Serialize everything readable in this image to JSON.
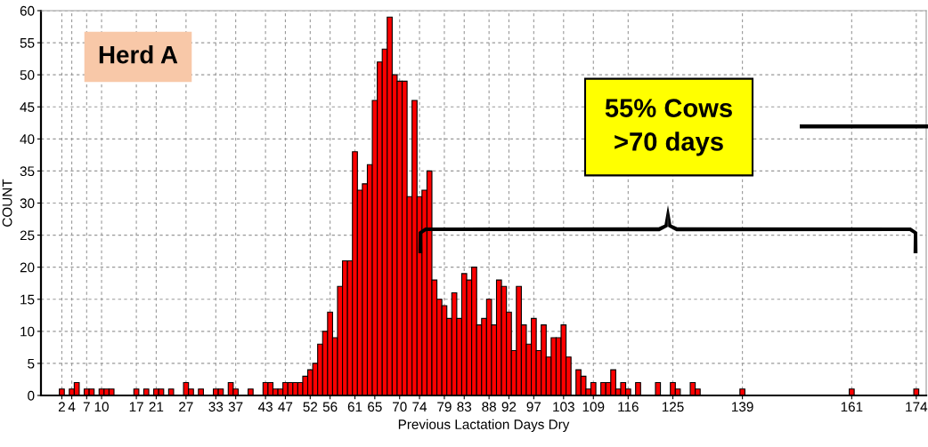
{
  "chart_data": {
    "type": "histogram",
    "xlabel": "Previous Lactation Days Dry",
    "ylabel": "COUNT",
    "annotations": [
      "Herd A",
      "55% Cows\n>70 days"
    ],
    "bins": [
      0.5,
      1.5,
      2.5,
      3.5,
      4.5,
      5.5,
      6.5,
      7.5,
      8.5,
      9.5,
      10.5,
      11.5,
      12.5,
      13.5,
      14.5,
      15.5,
      16.5,
      17.5,
      18.5,
      19.5,
      20.5,
      21.5,
      22.5,
      23.5,
      24.5,
      25.5,
      26.5,
      27.5,
      28.5,
      29.5,
      30.5,
      31.5,
      32.5,
      33.5,
      34.5,
      35.5,
      36.5,
      37.5,
      38.5,
      39.5,
      40.5,
      41.5,
      42.5,
      43.5,
      44.5,
      45.5,
      46.5,
      47.5,
      48.5,
      49.5,
      50.5,
      51.5,
      52.5,
      53.5,
      54.5,
      55.5,
      56.5,
      57.5,
      58.5,
      59.5,
      60.5,
      61.5,
      62.5,
      63.5,
      64.5,
      65.5,
      66.5,
      67.5,
      68.5,
      69.5,
      70.5,
      71.5,
      72.5,
      73.5,
      74.5,
      75.5,
      76.5,
      77.5,
      78.5,
      79.5,
      80.5,
      81.5,
      82.5,
      83.5,
      84.5,
      85.5,
      86.5,
      87.5,
      88.5,
      89.5,
      90.5,
      91.5,
      92.5,
      93.5,
      94.5,
      95.5,
      96.5,
      97.5,
      98.5,
      99.5,
      100.5,
      101.5,
      102.5,
      103.5,
      104.5,
      105.5,
      106.5,
      107.5,
      108.5,
      109.5,
      110.5,
      111.5,
      112.5,
      113.5,
      114.5,
      115.5,
      116.5,
      117.5,
      118.5,
      119.5,
      120.5,
      121.5,
      122.5,
      123.5,
      124.5,
      125.5,
      126.5,
      127.5,
      128.5,
      129.5,
      130.5,
      131.5,
      132.5,
      133.5,
      134.5,
      135.5,
      136.5,
      137.5,
      138.5,
      139.5,
      140.5,
      141.5,
      142.5,
      143.5,
      144.5,
      145.5,
      146.5,
      147.5,
      148.5,
      149.5,
      150.5,
      151.5,
      152.5,
      153.5,
      154.5,
      155.5,
      156.5,
      157.5,
      158.5,
      159.5,
      160.5,
      161.5,
      162.5,
      163.5,
      164.5,
      165.5,
      166.5,
      167.5,
      168.5,
      169.5,
      170.5,
      171.5,
      172.5,
      173.5,
      174.5
    ],
    "values": [
      0,
      1,
      0,
      1,
      2,
      0,
      1,
      1,
      0,
      1,
      1,
      1,
      0,
      0,
      0,
      0,
      1,
      0,
      1,
      0,
      1,
      1,
      0,
      1,
      0,
      0,
      2,
      1,
      0,
      1,
      0,
      0,
      1,
      1,
      0,
      2,
      1,
      0,
      0,
      1,
      0,
      0,
      2,
      2,
      1,
      1,
      2,
      2,
      2,
      2,
      3,
      4,
      5,
      8,
      10,
      13,
      9,
      17,
      21,
      21,
      38,
      32,
      33,
      36,
      46,
      52,
      54,
      59,
      50,
      49,
      49,
      31,
      46,
      31,
      32,
      35,
      18,
      15,
      14,
      12,
      16,
      12,
      19,
      18,
      20,
      11,
      12,
      15,
      11,
      18,
      17,
      13,
      7,
      17,
      11,
      8,
      12,
      7,
      11,
      6,
      9,
      9,
      11,
      6,
      0,
      4,
      3,
      1,
      2,
      0,
      2,
      2,
      4,
      1,
      2,
      1,
      0,
      2,
      0,
      0,
      0,
      2,
      0,
      0,
      2,
      1,
      0,
      0,
      2,
      1,
      0,
      0,
      0,
      0,
      0,
      0,
      0,
      0,
      1,
      0,
      0,
      0,
      0,
      0,
      0,
      0,
      0,
      0,
      0,
      0,
      0,
      0,
      0,
      0,
      0,
      0,
      0,
      0,
      0,
      0,
      1,
      0,
      0,
      0,
      0,
      0,
      0,
      0,
      0,
      0,
      0,
      0,
      0,
      1
    ],
    "color": "#ff0000",
    "xlim": [
      -2.2,
      176
    ],
    "xticks": [
      2,
      4,
      7,
      10,
      17,
      21,
      27,
      33,
      37,
      43,
      47,
      52,
      56,
      61,
      65,
      70,
      74,
      79,
      83,
      88,
      92,
      97,
      103,
      109,
      116,
      125,
      139,
      161,
      174
    ],
    "ylim": [
      0,
      60
    ],
    "yticks": [
      0,
      5,
      10,
      15,
      20,
      25,
      30,
      35,
      40,
      45,
      50,
      55,
      60
    ],
    "grid": true,
    "legend": false
  }
}
